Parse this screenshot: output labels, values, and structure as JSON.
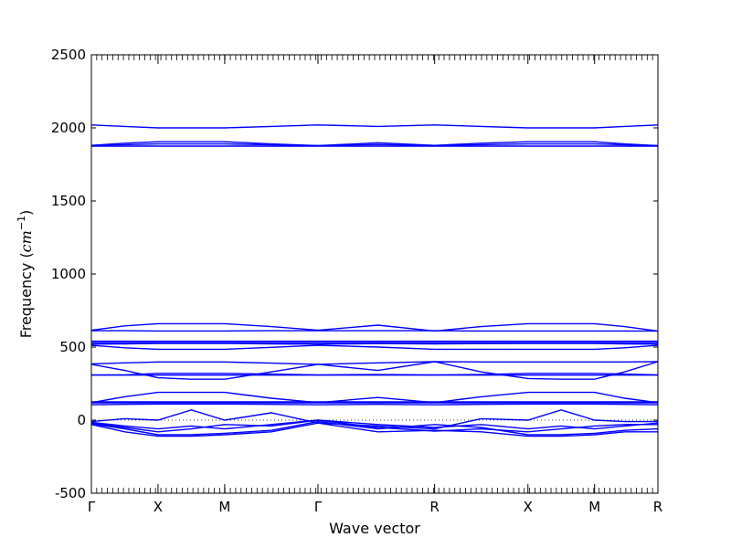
{
  "chart_data": {
    "type": "line",
    "title": "",
    "xlabel": "Wave vector",
    "ylabel": "Frequency (cm⁻¹)",
    "ylabel_text": "Frequency (",
    "ylabel_unit": "cm",
    "ylabel_exp": "−1",
    "ylabel_close": ")",
    "ylim": [
      -500,
      2500
    ],
    "yticks": [
      -500,
      0,
      500,
      1000,
      1500,
      2000,
      2500
    ],
    "xlim": [
      0,
      8.5
    ],
    "xticks": [
      {
        "pos": 0,
        "label": "Γ"
      },
      {
        "pos": 1,
        "label": "X"
      },
      {
        "pos": 2,
        "label": "M"
      },
      {
        "pos": 3.4,
        "label": "Γ"
      },
      {
        "pos": 5.15,
        "label": "R"
      },
      {
        "pos": 6.55,
        "label": "X"
      },
      {
        "pos": 7.55,
        "label": "M"
      },
      {
        "pos": 8.5,
        "label": "R"
      }
    ],
    "band_color": "#0000ff",
    "zero_line": "dotted",
    "grid": false,
    "x": [
      0,
      0.5,
      1,
      1.5,
      2,
      2.7,
      3.4,
      4.3,
      5.15,
      5.85,
      6.55,
      7.05,
      7.55,
      8.0,
      8.5
    ],
    "series": [
      {
        "values": [
          2020,
          2010,
          2000,
          2000,
          2000,
          2010,
          2020,
          2010,
          2020,
          2010,
          2000,
          2000,
          2000,
          2010,
          2020
        ]
      },
      {
        "values": [
          1880,
          1895,
          1905,
          1905,
          1905,
          1890,
          1878,
          1898,
          1880,
          1895,
          1905,
          1905,
          1905,
          1890,
          1878
        ]
      },
      {
        "values": [
          1880,
          1885,
          1890,
          1890,
          1890,
          1884,
          1878,
          1886,
          1878,
          1885,
          1890,
          1890,
          1890,
          1884,
          1878
        ]
      },
      {
        "values": [
          1875,
          1875,
          1875,
          1875,
          1875,
          1875,
          1875,
          1875,
          1875,
          1875,
          1875,
          1875,
          1875,
          1875,
          1875
        ]
      },
      {
        "values": [
          615,
          645,
          660,
          660,
          660,
          640,
          615,
          650,
          610,
          640,
          660,
          660,
          660,
          640,
          610
        ]
      },
      {
        "values": [
          612,
          612,
          610,
          610,
          610,
          612,
          612,
          612,
          612,
          610,
          610,
          610,
          610,
          610,
          610
        ]
      },
      {
        "values": [
          540,
          540,
          540,
          540,
          540,
          540,
          540,
          540,
          540,
          540,
          540,
          540,
          540,
          540,
          540
        ]
      },
      {
        "values": [
          530,
          530,
          530,
          530,
          530,
          530,
          530,
          530,
          530,
          530,
          530,
          530,
          530,
          530,
          530
        ]
      },
      {
        "values": [
          520,
          522,
          525,
          525,
          525,
          522,
          520,
          524,
          522,
          524,
          525,
          525,
          525,
          522,
          520
        ]
      },
      {
        "values": [
          512,
          495,
          485,
          485,
          485,
          498,
          512,
          500,
          485,
          485,
          485,
          485,
          485,
          495,
          512
        ]
      },
      {
        "values": [
          385,
          392,
          398,
          398,
          398,
          390,
          382,
          392,
          400,
          398,
          398,
          398,
          398,
          398,
          400
        ]
      },
      {
        "values": [
          382,
          340,
          290,
          280,
          280,
          330,
          382,
          340,
          400,
          330,
          285,
          280,
          280,
          330,
          400
        ]
      },
      {
        "values": [
          310,
          310,
          320,
          320,
          320,
          315,
          310,
          312,
          310,
          312,
          320,
          320,
          320,
          315,
          310
        ]
      },
      {
        "values": [
          308,
          308,
          308,
          308,
          308,
          308,
          308,
          308,
          308,
          308,
          308,
          308,
          308,
          308,
          308
        ]
      },
      {
        "values": [
          120,
          160,
          190,
          190,
          190,
          150,
          120,
          155,
          120,
          160,
          190,
          190,
          190,
          150,
          120
        ]
      },
      {
        "values": [
          125,
          125,
          125,
          125,
          125,
          125,
          125,
          125,
          125,
          125,
          125,
          125,
          125,
          125,
          125
        ]
      },
      {
        "values": [
          118,
          118,
          118,
          118,
          118,
          118,
          118,
          118,
          118,
          118,
          118,
          118,
          118,
          118,
          118
        ]
      },
      {
        "values": [
          105,
          108,
          110,
          110,
          110,
          108,
          105,
          108,
          105,
          108,
          110,
          110,
          110,
          108,
          105
        ]
      },
      {
        "values": [
          -10,
          10,
          0,
          70,
          0,
          50,
          -20,
          -40,
          -60,
          10,
          0,
          70,
          0,
          -10,
          -10
        ]
      },
      {
        "values": [
          -15,
          -40,
          -60,
          -40,
          -60,
          -30,
          0,
          -30,
          -50,
          -30,
          -60,
          -40,
          -60,
          -40,
          -20
        ]
      },
      {
        "values": [
          -20,
          -50,
          -80,
          -60,
          -30,
          -40,
          0,
          -50,
          -75,
          -60,
          -80,
          -60,
          -40,
          -30,
          -30
        ]
      },
      {
        "values": [
          -25,
          -60,
          -100,
          -100,
          -90,
          -70,
          -10,
          -60,
          -30,
          -50,
          -100,
          -100,
          -90,
          -70,
          -60
        ]
      },
      {
        "values": [
          -30,
          -80,
          -110,
          -110,
          -100,
          -80,
          -20,
          -80,
          -70,
          -80,
          -110,
          -110,
          -100,
          -80,
          -80
        ]
      }
    ]
  }
}
